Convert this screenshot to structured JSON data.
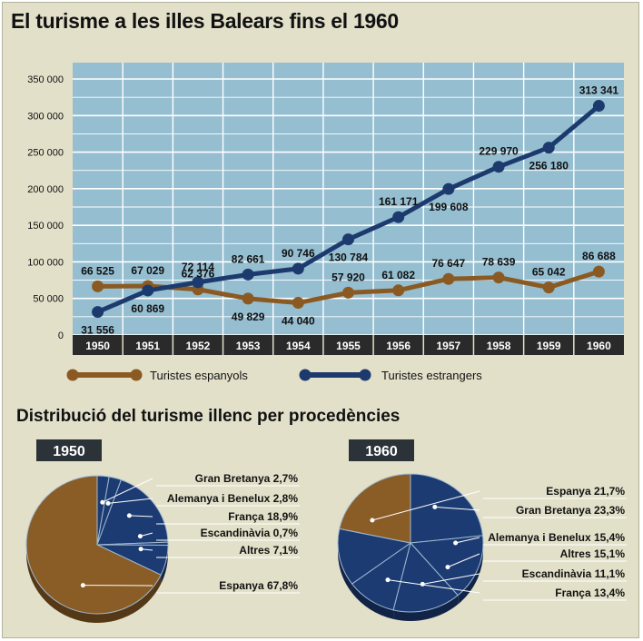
{
  "title": "El turisme a les illes Balears fins el 1960",
  "subtitle": "Distribució del turisme illenc per procedències",
  "colors": {
    "plot_bg": "#95bed1",
    "grid": "#ffffff",
    "spanish": "#8a5a22",
    "foreign": "#1d3a6e",
    "axis_band": "#2a2a2a",
    "pie_brown": "#8a5c26",
    "pie_blue": "#1c3b73",
    "badge": "#2b3238"
  },
  "chart_data": [
    {
      "type": "line",
      "x": [
        "1950",
        "1951",
        "1952",
        "1953",
        "1954",
        "1955",
        "1956",
        "1957",
        "1958",
        "1959",
        "1960"
      ],
      "ylim": [
        0,
        350000
      ],
      "yticks": [
        "350 000",
        "300 000",
        "250 000",
        "200 000",
        "150 000",
        "100 000",
        "50 000",
        "0"
      ],
      "grid": true,
      "legend": "bottom",
      "series": [
        {
          "name": "Turistes espanyols",
          "color_key": "spanish",
          "values": [
            66525,
            67029,
            62376,
            49829,
            44040,
            57920,
            61082,
            76647,
            78639,
            65042,
            86688
          ],
          "labels": [
            "66 525",
            "67 029",
            "62 376",
            "49 829",
            "44 040",
            "57 920",
            "61 082",
            "76 647",
            "78 639",
            "65 042",
            "86 688"
          ]
        },
        {
          "name": "Turistes estrangers",
          "color_key": "foreign",
          "values": [
            31556,
            60869,
            72114,
            82661,
            90746,
            130784,
            161171,
            199608,
            229970,
            256180,
            313341
          ],
          "labels": [
            "31 556",
            "60 869",
            "72 114",
            "82 661",
            "90 746",
            "130 784",
            "161 171",
            "199 608",
            "229 970",
            "256 180",
            "313 341"
          ]
        }
      ]
    },
    {
      "type": "pie",
      "title": "1950",
      "slices": [
        {
          "label": "Gran Bretanya 2,7%",
          "value": 2.7,
          "group": "blue"
        },
        {
          "label": "Alemanya i Benelux 2,8%",
          "value": 2.8,
          "group": "blue"
        },
        {
          "label": "França 18,9%",
          "value": 18.9,
          "group": "blue"
        },
        {
          "label": "Escandinàvia 0,7%",
          "value": 0.7,
          "group": "blue"
        },
        {
          "label": "Altres 7,1%",
          "value": 7.1,
          "group": "blue"
        },
        {
          "label": "Espanya 67,8%",
          "value": 67.8,
          "group": "brown"
        }
      ]
    },
    {
      "type": "pie",
      "title": "1960",
      "slices": [
        {
          "label": "Gran Bretanya 23,3%",
          "value": 23.3,
          "group": "blue"
        },
        {
          "label": "Alemanya i Benelux 15,4%",
          "value": 15.4,
          "group": "blue"
        },
        {
          "label": "Altres 15,1%",
          "value": 15.1,
          "group": "blue"
        },
        {
          "label": "Escandinàvia 11,1%",
          "value": 11.1,
          "group": "blue"
        },
        {
          "label": "França 13,4%",
          "value": 13.4,
          "group": "blue"
        },
        {
          "label": "Espanya 21,7%",
          "value": 21.7,
          "group": "brown"
        }
      ],
      "legend_order": [
        5,
        0,
        1,
        2,
        3,
        4
      ]
    }
  ]
}
